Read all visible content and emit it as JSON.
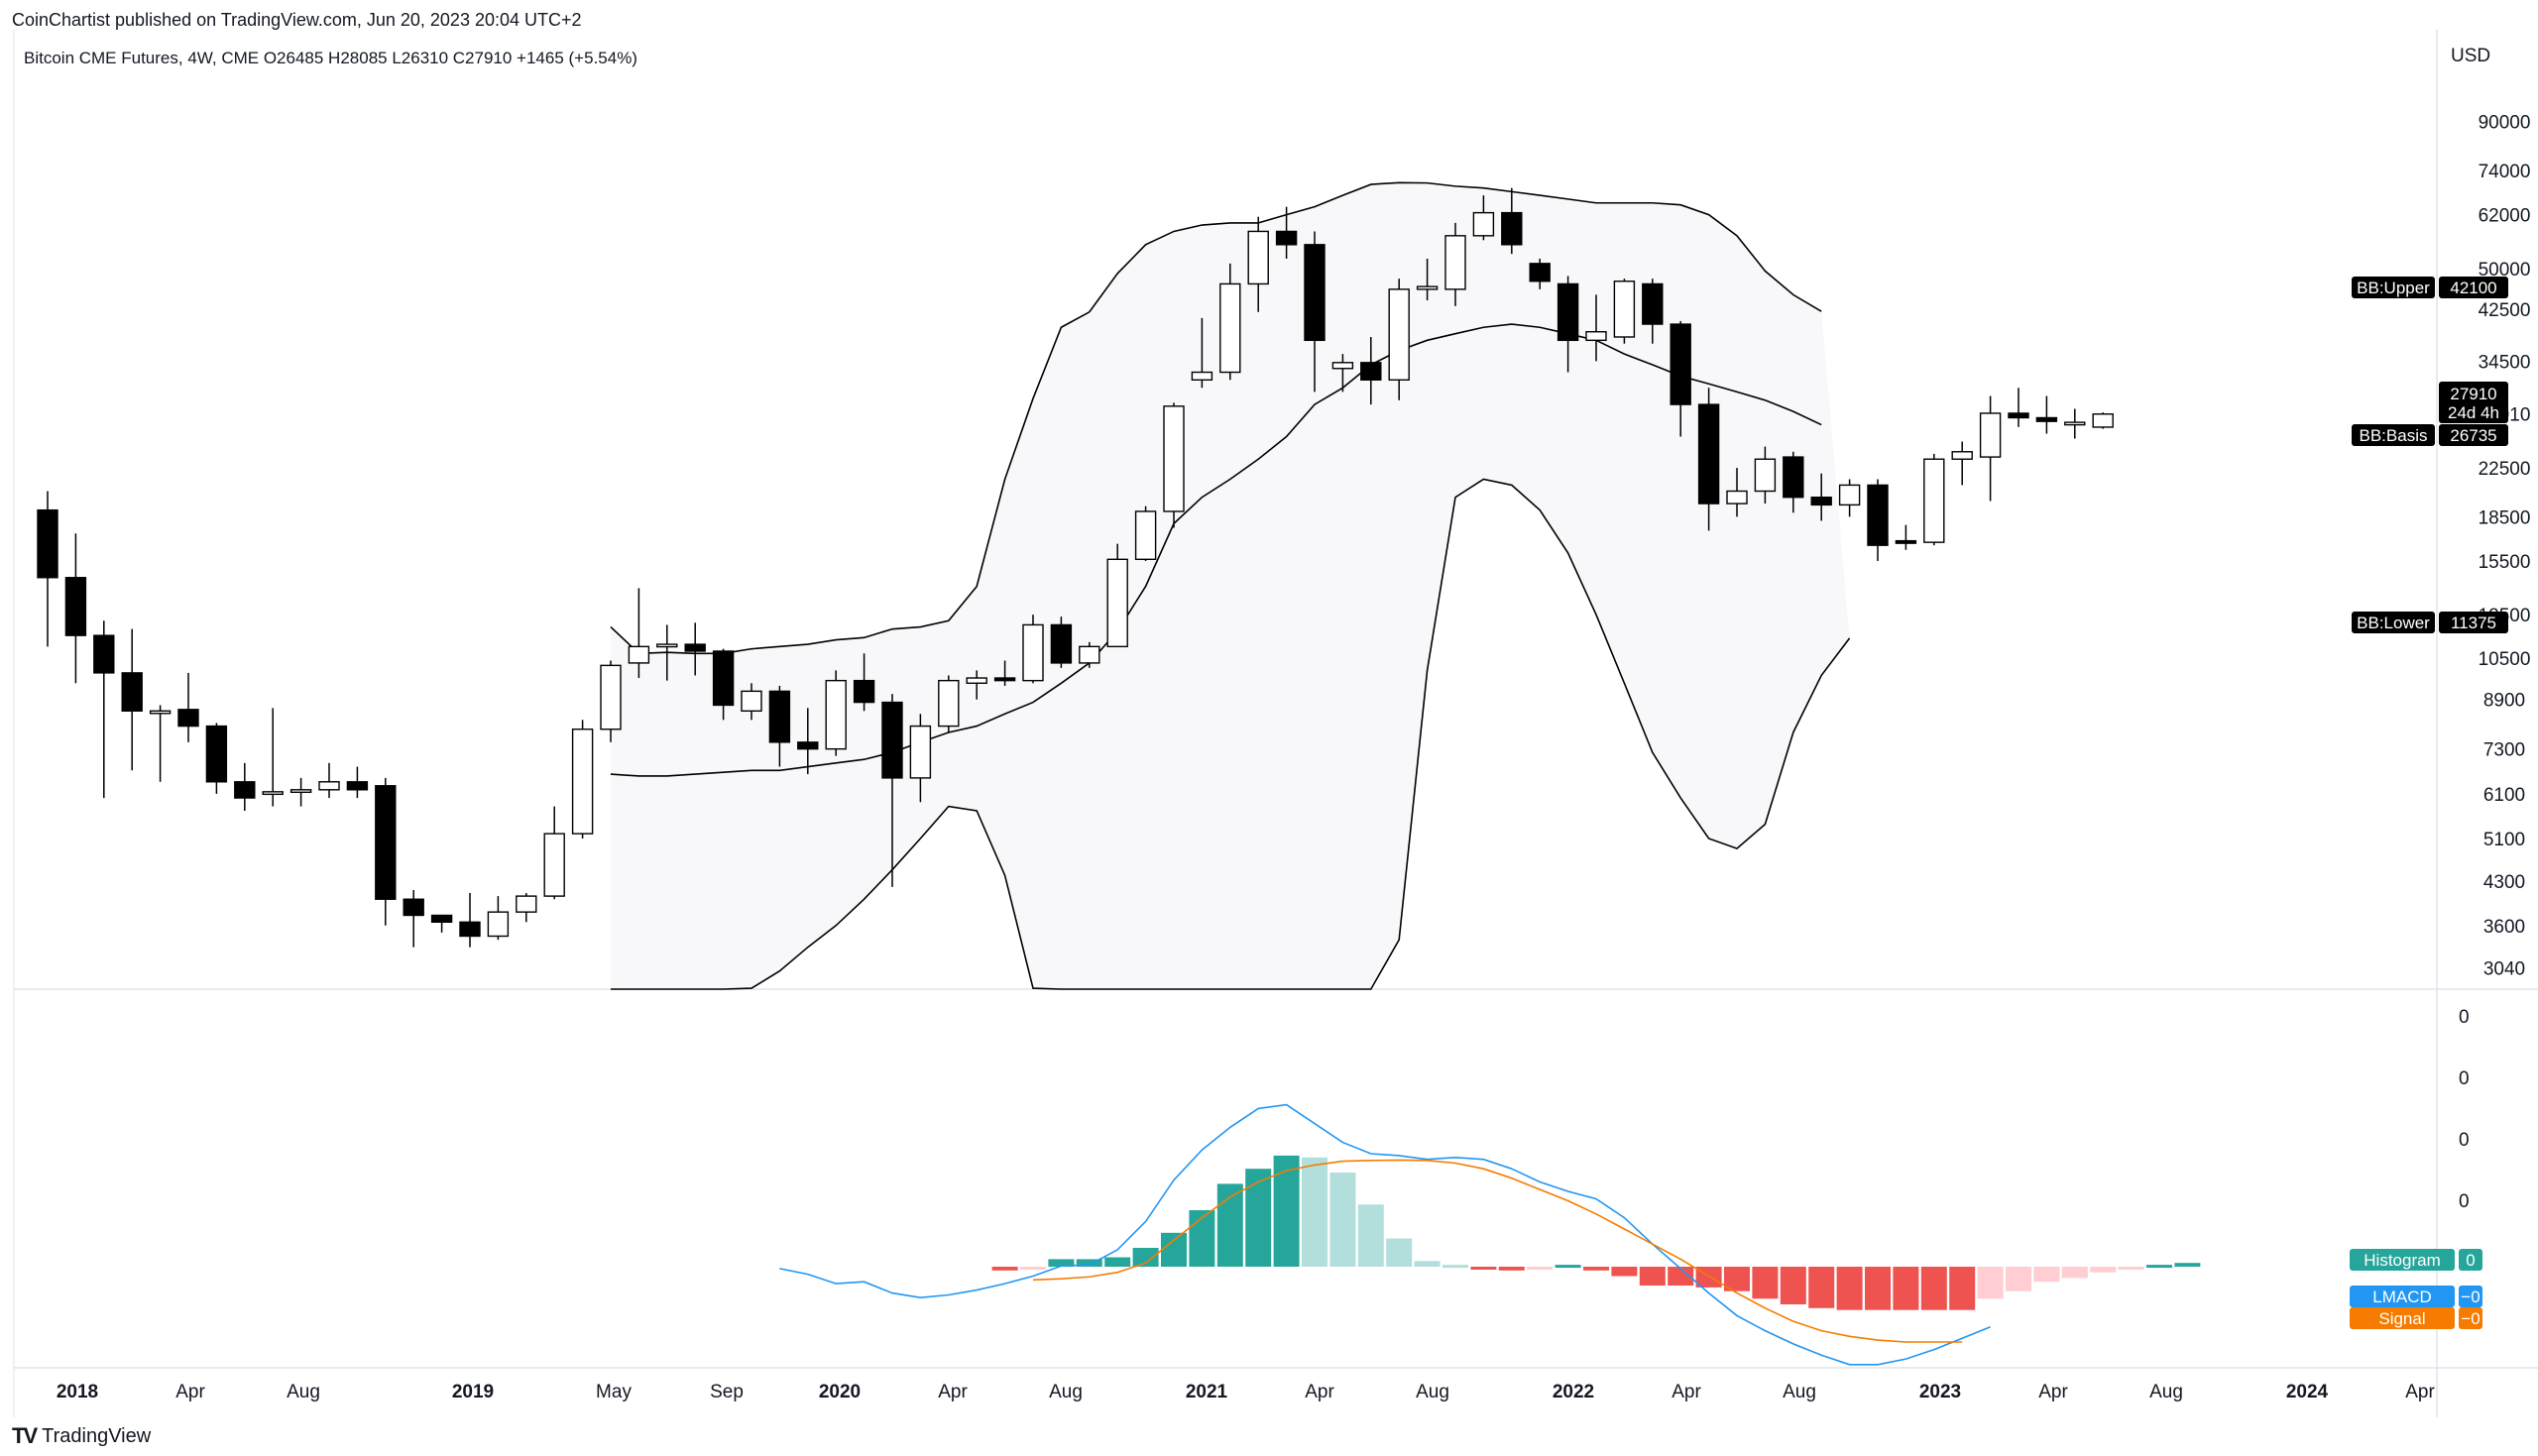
{
  "header": {
    "publisher": "CoinChartist published on TradingView.com, Jun 20, 2023 20:04 UTC+2",
    "legend": "Bitcoin CME Futures, 4W, CME  O26485  H28085  L26310  C27910  +1465 (+5.54%)"
  },
  "footer": {
    "logo": "TV",
    "brand": "TradingView"
  },
  "colors": {
    "up_fill": "#ffffff",
    "down_fill": "#000000",
    "band_fill": "#f8f8fb",
    "macd": "#2196f3",
    "signal": "#f57c00",
    "hist_up_strong": "#26a69a",
    "hist_up_weak": "#b2dfdb",
    "hist_down_strong": "#ef5350",
    "hist_down_weak": "#ffcdd2"
  },
  "chart_data": [
    {
      "type": "candlestick",
      "title": "Bitcoin CME Futures, 4W, CME",
      "scale": "log",
      "currency": "USD",
      "y_tick_labels": [
        "90000",
        "74000",
        "62000",
        "50000",
        "42500",
        "34500",
        "27910",
        "22500",
        "18500",
        "15500",
        "12500",
        "10500",
        "8900",
        "7300",
        "6100",
        "5100",
        "4300",
        "3600",
        "3040"
      ],
      "x_tick_labels": [
        {
          "t": "2018",
          "bold": true
        },
        {
          "t": "Apr",
          "bold": false
        },
        {
          "t": "Aug",
          "bold": false
        },
        {
          "t": "2019",
          "bold": true
        },
        {
          "t": "May",
          "bold": false
        },
        {
          "t": "Sep",
          "bold": false
        },
        {
          "t": "2020",
          "bold": true
        },
        {
          "t": "Apr",
          "bold": false
        },
        {
          "t": "Aug",
          "bold": false
        },
        {
          "t": "2021",
          "bold": true
        },
        {
          "t": "Apr",
          "bold": false
        },
        {
          "t": "Aug",
          "bold": false
        },
        {
          "t": "2022",
          "bold": true
        },
        {
          "t": "Apr",
          "bold": false
        },
        {
          "t": "Aug",
          "bold": false
        },
        {
          "t": "2023",
          "bold": true
        },
        {
          "t": "Apr",
          "bold": false
        },
        {
          "t": "Aug",
          "bold": false
        },
        {
          "t": "2024",
          "bold": true
        },
        {
          "t": "Apr",
          "bold": false
        }
      ],
      "candles": [
        [
          19000,
          14500,
          20500,
          11000
        ],
        [
          14500,
          11500,
          17300,
          9500
        ],
        [
          11500,
          9900,
          12200,
          6000
        ],
        [
          9900,
          8500,
          11800,
          6700
        ],
        [
          8500,
          8500,
          8700,
          6400
        ],
        [
          8550,
          8000,
          9900,
          7500
        ],
        [
          8000,
          6400,
          8100,
          6100
        ],
        [
          6400,
          6000,
          6900,
          5700
        ],
        [
          6100,
          6150,
          8600,
          5800
        ],
        [
          6150,
          6200,
          6500,
          5800
        ],
        [
          6200,
          6400,
          6900,
          6000
        ],
        [
          6400,
          6200,
          6800,
          6000
        ],
        [
          6300,
          4000,
          6500,
          3600
        ],
        [
          4000,
          3750,
          4150,
          3300
        ],
        [
          3750,
          3650,
          3750,
          3500
        ],
        [
          3650,
          3450,
          4100,
          3300
        ],
        [
          3450,
          3800,
          4050,
          3400
        ],
        [
          3800,
          4050,
          4100,
          3650
        ],
        [
          4050,
          5200,
          5800,
          4000
        ],
        [
          5200,
          7900,
          8200,
          5100
        ],
        [
          7900,
          10200,
          10400,
          7500
        ],
        [
          10300,
          11000,
          13900,
          9700
        ],
        [
          11000,
          11100,
          12000,
          9600
        ],
        [
          11100,
          10800,
          12100,
          9800
        ],
        [
          10800,
          8700,
          10900,
          8200
        ],
        [
          8500,
          9200,
          9500,
          8200
        ],
        [
          9200,
          7500,
          9400,
          6800
        ],
        [
          7500,
          7300,
          8600,
          6600
        ],
        [
          7300,
          9600,
          10000,
          7100
        ],
        [
          9600,
          8800,
          10700,
          8500
        ],
        [
          8800,
          6500,
          9100,
          4200
        ],
        [
          6500,
          8000,
          8400,
          5900
        ],
        [
          8000,
          9600,
          9800,
          7800
        ],
        [
          9500,
          9700,
          10000,
          8900
        ],
        [
          9700,
          9600,
          10400,
          9400
        ],
        [
          9600,
          12000,
          12500,
          9500
        ],
        [
          12000,
          10300,
          12400,
          10100
        ],
        [
          10300,
          11000,
          11200,
          10100
        ],
        [
          11000,
          15600,
          16600,
          11000
        ],
        [
          15600,
          18900,
          19300,
          15500
        ],
        [
          18900,
          28800,
          29200,
          17700
        ],
        [
          32000,
          33000,
          41000,
          31000
        ],
        [
          33000,
          47000,
          51000,
          32000
        ],
        [
          47000,
          58000,
          61500,
          42000
        ],
        [
          58000,
          55000,
          64000,
          52000
        ],
        [
          55000,
          37500,
          58000,
          30500
        ],
        [
          33500,
          34300,
          35500,
          30500
        ],
        [
          34300,
          32000,
          38000,
          29000
        ],
        [
          32000,
          46000,
          48000,
          29500
        ],
        [
          46000,
          46500,
          52000,
          44000
        ],
        [
          46000,
          57000,
          60000,
          43000
        ],
        [
          57000,
          62500,
          67000,
          56000
        ],
        [
          62500,
          55000,
          69000,
          53000
        ],
        [
          51000,
          47500,
          52000,
          46000
        ],
        [
          47000,
          37500,
          48500,
          33000
        ],
        [
          37500,
          38800,
          45000,
          34500
        ],
        [
          38000,
          47500,
          48000,
          37000
        ],
        [
          47000,
          40000,
          48000,
          37000
        ],
        [
          40000,
          29000,
          40500,
          25500
        ],
        [
          29000,
          19500,
          31000,
          17500
        ],
        [
          19500,
          20500,
          22500,
          18500
        ],
        [
          20500,
          23300,
          24500,
          19500
        ],
        [
          23500,
          20000,
          24000,
          18800
        ],
        [
          20000,
          19400,
          22000,
          18200
        ],
        [
          19400,
          21000,
          21500,
          18500
        ],
        [
          21000,
          16500,
          21500,
          15500
        ],
        [
          16800,
          16700,
          17900,
          16200
        ],
        [
          16700,
          23300,
          23800,
          16500
        ],
        [
          23300,
          24000,
          25000,
          21000
        ],
        [
          23500,
          28000,
          30000,
          19700
        ],
        [
          28000,
          27500,
          31000,
          26500
        ],
        [
          27500,
          27100,
          30000,
          25800
        ],
        [
          26800,
          27000,
          28500,
          25300
        ],
        [
          26485,
          27910,
          28085,
          26310
        ]
      ],
      "bb_upper": [
        11900,
        10700,
        10750,
        10700,
        10700,
        10900,
        11000,
        11100,
        11300,
        11400,
        11800,
        11900,
        12200,
        14000,
        21500,
        29700,
        39500,
        42000,
        49000,
        55000,
        58000,
        59500,
        60000,
        60000,
        62000,
        64000,
        67000,
        70000,
        70500,
        70400,
        69500,
        69000,
        68000,
        67000,
        66000,
        65000,
        65000,
        65000,
        64500,
        62000,
        57000,
        49500,
        45000,
        42100
      ],
      "bb_basis": [
        6600,
        6550,
        6550,
        6600,
        6650,
        6700,
        6700,
        6800,
        6900,
        7000,
        7200,
        7500,
        7800,
        8000,
        8400,
        8800,
        9500,
        10300,
        11700,
        14000,
        18000,
        20000,
        21500,
        23300,
        25500,
        29000,
        31000,
        34000,
        36000,
        37500,
        38500,
        39500,
        40000,
        39500,
        38500,
        37500,
        35500,
        34000,
        32500,
        31500,
        30500,
        29500,
        28200,
        26735
      ],
      "bb_lower": [
        1400,
        1600,
        1900,
        2200,
        2500,
        2800,
        3000,
        3300,
        3600,
        4000,
        4500,
        5100,
        5800,
        5700,
        4400,
        2800,
        1600,
        1200,
        900,
        800,
        600,
        400,
        300,
        200,
        200,
        300,
        600,
        1200,
        3400,
        10000,
        20000,
        21500,
        21000,
        19000,
        16000,
        12500,
        9500,
        7200,
        6000,
        5100,
        4900,
        5400,
        7800,
        9800,
        11375
      ],
      "labels": {
        "currency": "USD",
        "bb_upper": {
          "name": "BB:Upper",
          "value": "42100"
        },
        "bb_basis": {
          "name": "BB:Basis",
          "value": "26735"
        },
        "bb_lower": {
          "name": "BB:Lower",
          "value": "11375"
        },
        "last_price": {
          "value": "27910",
          "countdown": "24d 4h"
        }
      }
    },
    {
      "type": "line+histogram",
      "name": "MACD",
      "y_tick_labels": [
        "0",
        "0",
        "0",
        "0"
      ],
      "macd": [
        -0.05,
        -0.2,
        -0.45,
        -0.4,
        -0.7,
        -0.82,
        -0.75,
        -0.62,
        -0.45,
        -0.25,
        0.02,
        0.05,
        0.45,
        1.2,
        2.3,
        3.1,
        3.7,
        4.2,
        4.3,
        3.8,
        3.3,
        3.0,
        2.95,
        2.85,
        2.9,
        2.85,
        2.6,
        2.25,
        2.0,
        1.8,
        1.3,
        0.6,
        -0.05,
        -0.7,
        -1.3,
        -1.7,
        -2.05,
        -2.35,
        -2.6,
        -2.6,
        -2.45,
        -2.2,
        -1.9,
        -1.6
      ],
      "signal": [
        -0.35,
        -0.32,
        -0.27,
        -0.15,
        0.1,
        0.7,
        1.3,
        1.85,
        2.25,
        2.55,
        2.7,
        2.8,
        2.82,
        2.83,
        2.82,
        2.75,
        2.6,
        2.35,
        2.05,
        1.75,
        1.4,
        1.0,
        0.6,
        0.2,
        -0.25,
        -0.7,
        -1.1,
        -1.45,
        -1.7,
        -1.85,
        -1.95,
        -2.0,
        -2.0,
        -2.0
      ],
      "histogram": [
        -0.1,
        -0.05,
        0.2,
        0.2,
        0.25,
        0.5,
        0.9,
        1.5,
        2.2,
        2.6,
        2.95,
        2.9,
        2.5,
        1.65,
        0.75,
        0.15,
        0.05,
        -0.05,
        -0.1,
        -0.05,
        0.05,
        -0.1,
        -0.25,
        -0.5,
        -0.5,
        -0.55,
        -0.65,
        -0.85,
        -1.0,
        -1.1,
        -1.15,
        -1.15,
        -1.15,
        -1.15,
        -1.15,
        -0.85,
        -0.65,
        -0.4,
        -0.3,
        -0.15,
        -0.05,
        0.05,
        0.1
      ],
      "labels": {
        "histogram": {
          "name": "Histogram",
          "value": "0"
        },
        "macd": {
          "name": "LMACD",
          "value": "−0"
        },
        "signal": {
          "name": "Signal",
          "value": "−0"
        }
      }
    }
  ]
}
